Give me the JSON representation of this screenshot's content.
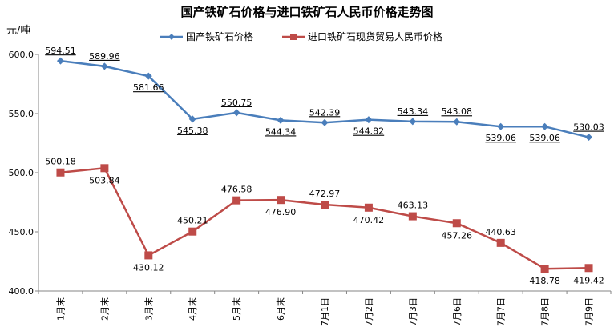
{
  "chart_data": {
    "type": "line",
    "title": "国产铁矿石价格与进口铁矿石人民币价格走势图",
    "ylabel": "元/吨",
    "xlabel": "",
    "ylim": [
      400,
      600
    ],
    "yticks": [
      "400.0",
      "450.0",
      "500.0",
      "550.0",
      "600.0"
    ],
    "grid": false,
    "legend_position": "top",
    "categories": [
      "1月末",
      "2月末",
      "3月末",
      "4月末",
      "5月末",
      "6月末",
      "7月1日",
      "7月2日",
      "7月3日",
      "7月6日",
      "7月7日",
      "7月8日",
      "7月9日"
    ],
    "series": [
      {
        "name": "国产铁矿石价格",
        "color": "#4a7ebb",
        "marker": "diamond",
        "values": [
          594.51,
          589.96,
          581.66,
          545.38,
          550.75,
          544.34,
          542.39,
          544.82,
          543.34,
          543.08,
          539.06,
          539.06,
          530.03
        ],
        "labels": [
          "594.51",
          "589.96",
          "581.66",
          "545.38",
          "550.75",
          "544.34",
          "542.39",
          "544.82",
          "543.34",
          "543.08",
          "539.06",
          "539.06",
          "530.03"
        ]
      },
      {
        "name": "进口铁矿石现货贸易人民币价格",
        "color": "#be4b48",
        "marker": "square",
        "values": [
          500.18,
          503.84,
          430.12,
          450.21,
          476.58,
          476.9,
          472.97,
          470.42,
          463.13,
          457.26,
          440.63,
          418.78,
          419.42
        ],
        "labels": [
          "500.18",
          "503.84",
          "430.12",
          "450.21",
          "476.58",
          "476.90",
          "472.97",
          "470.42",
          "463.13",
          "457.26",
          "440.63",
          "418.78",
          "419.42"
        ]
      }
    ]
  }
}
